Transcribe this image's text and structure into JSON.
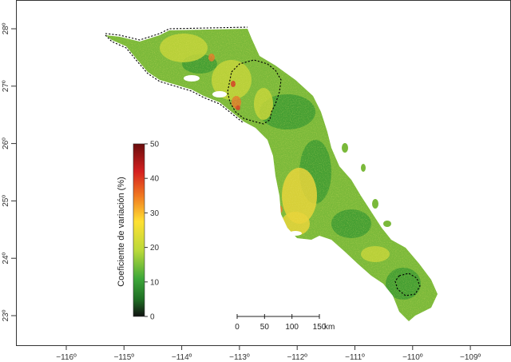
{
  "map": {
    "x_ticks": [
      "−116º",
      "−115º",
      "−114º",
      "−113º",
      "−112º",
      "−111º",
      "−110º",
      "−109º"
    ],
    "y_ticks": [
      "28º",
      "27º",
      "26º",
      "25º",
      "24º",
      "23º"
    ],
    "colors": {
      "land_base": "#7ab93a",
      "land_dark": "#3c9a33",
      "land_light": "#c3d43a",
      "land_yellow": "#e8d33a",
      "land_hot": "#e07a2a",
      "land_red": "#d23a25",
      "boundary": "#000000"
    }
  },
  "legend": {
    "title": "Coeficiente de variación (%)",
    "ticks": [
      "0",
      "10",
      "20",
      "30",
      "40",
      "50"
    ],
    "colors": [
      "#111111",
      "#2e8f2e",
      "#9acd32",
      "#ffe033",
      "#f07820",
      "#d42020",
      "#7a0e0e"
    ]
  },
  "scale_bar": {
    "ticks": [
      "0",
      "50",
      "100",
      "150"
    ],
    "unit": "km"
  }
}
